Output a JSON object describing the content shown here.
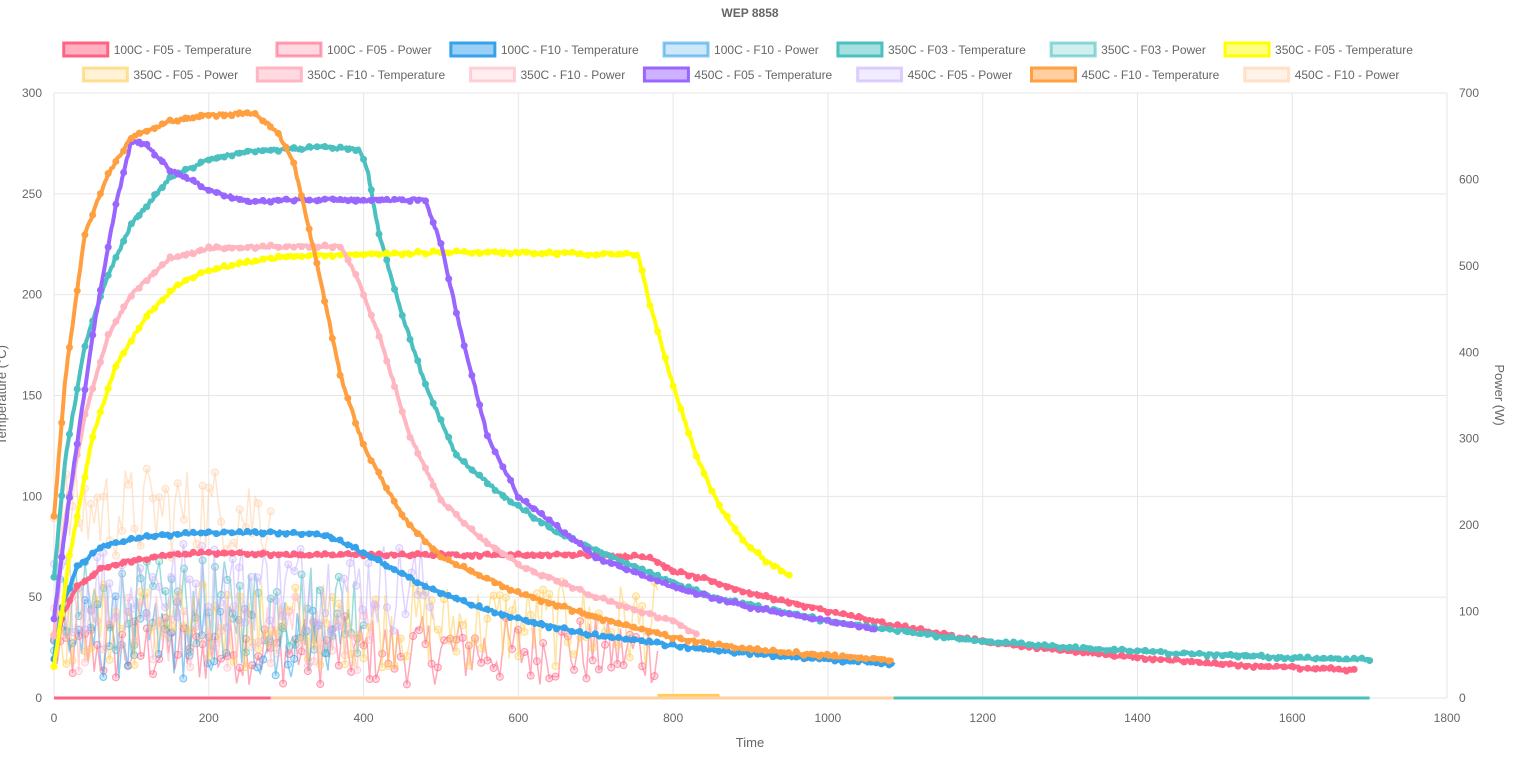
{
  "chart_data": {
    "type": "line",
    "title": "WEP 8858",
    "xlabel": "Time",
    "ylabel": "Temperature (°C)",
    "y2label": "Power (W)",
    "xlim": [
      0,
      1800
    ],
    "ylim": [
      0,
      300
    ],
    "y2lim": [
      0,
      700
    ],
    "x_ticks": [
      0,
      200,
      400,
      600,
      800,
      1000,
      1200,
      1400,
      1600,
      1800
    ],
    "y_ticks": [
      0,
      50,
      100,
      150,
      200,
      250,
      300
    ],
    "y2_ticks": [
      0,
      100,
      200,
      300,
      400,
      500,
      600,
      700
    ],
    "grid": true,
    "legend_position": "top",
    "series": [
      {
        "name": "100C - F05 - Temperature",
        "axis": "left",
        "color": "#ff6384",
        "kind": "temp",
        "points": [
          [
            0,
            20
          ],
          [
            10,
            40
          ],
          [
            30,
            55
          ],
          [
            60,
            64
          ],
          [
            100,
            68
          ],
          [
            150,
            71
          ],
          [
            200,
            72
          ],
          [
            300,
            71
          ],
          [
            400,
            71
          ],
          [
            500,
            71
          ],
          [
            600,
            71
          ],
          [
            700,
            71
          ],
          [
            770,
            70
          ],
          [
            800,
            63
          ],
          [
            850,
            58
          ],
          [
            900,
            52
          ],
          [
            1000,
            43
          ],
          [
            1100,
            35
          ],
          [
            1200,
            28
          ],
          [
            1300,
            24
          ],
          [
            1400,
            20
          ],
          [
            1500,
            17
          ],
          [
            1600,
            15
          ],
          [
            1680,
            14
          ]
        ]
      },
      {
        "name": "100C - F05 - Power",
        "axis": "right",
        "color": "#ff6384",
        "kind": "power",
        "mean": 55,
        "amp": 40,
        "x0": 0,
        "x1": 780,
        "points": [
          [
            0,
            0
          ],
          [
            780,
            0
          ],
          [
            780,
            0
          ],
          [
            1690,
            0
          ]
        ]
      },
      {
        "name": "100C - F10 - Temperature",
        "axis": "left",
        "color": "#36a2eb",
        "kind": "temp",
        "points": [
          [
            0,
            20
          ],
          [
            10,
            45
          ],
          [
            30,
            65
          ],
          [
            60,
            75
          ],
          [
            100,
            79
          ],
          [
            150,
            81
          ],
          [
            200,
            82
          ],
          [
            300,
            82
          ],
          [
            350,
            81
          ],
          [
            380,
            76
          ],
          [
            420,
            68
          ],
          [
            480,
            55
          ],
          [
            550,
            45
          ],
          [
            620,
            37
          ],
          [
            700,
            31
          ],
          [
            800,
            26
          ],
          [
            900,
            22
          ],
          [
            1000,
            19
          ],
          [
            1085,
            17
          ]
        ]
      },
      {
        "name": "100C - F10 - Power",
        "axis": "right",
        "color": "#36a2eb",
        "kind": "power",
        "mean": 70,
        "amp": 50,
        "x0": 0,
        "x1": 370,
        "points": [
          [
            370,
            0
          ],
          [
            1085,
            0
          ]
        ]
      },
      {
        "name": "350C - F03 - Temperature",
        "axis": "left",
        "color": "#4bc0c0",
        "kind": "temp",
        "points": [
          [
            0,
            60
          ],
          [
            15,
            120
          ],
          [
            40,
            175
          ],
          [
            70,
            210
          ],
          [
            100,
            235
          ],
          [
            150,
            258
          ],
          [
            200,
            267
          ],
          [
            250,
            271
          ],
          [
            300,
            272
          ],
          [
            350,
            273
          ],
          [
            395,
            272
          ],
          [
            405,
            262
          ],
          [
            420,
            230
          ],
          [
            450,
            190
          ],
          [
            480,
            155
          ],
          [
            520,
            120
          ],
          [
            580,
            100
          ],
          [
            650,
            82
          ],
          [
            750,
            65
          ],
          [
            850,
            50
          ],
          [
            1000,
            38
          ],
          [
            1200,
            28
          ],
          [
            1400,
            23
          ],
          [
            1600,
            20
          ],
          [
            1700,
            19
          ]
        ]
      },
      {
        "name": "350C - F03 - Power",
        "axis": "right",
        "color": "#4bc0c0",
        "kind": "power",
        "mean": 105,
        "amp": 55,
        "x0": 0,
        "x1": 400,
        "points": [
          [
            400,
            0
          ],
          [
            1700,
            0
          ]
        ]
      },
      {
        "name": "350C - F05 - Temperature",
        "axis": "left",
        "color": "#ffff00",
        "kind": "temp",
        "points": [
          [
            0,
            15
          ],
          [
            20,
            70
          ],
          [
            50,
            130
          ],
          [
            80,
            165
          ],
          [
            120,
            190
          ],
          [
            160,
            205
          ],
          [
            200,
            212
          ],
          [
            250,
            216
          ],
          [
            300,
            219
          ],
          [
            400,
            220
          ],
          [
            500,
            221
          ],
          [
            600,
            221
          ],
          [
            700,
            220
          ],
          [
            755,
            220
          ],
          [
            770,
            195
          ],
          [
            800,
            155
          ],
          [
            830,
            120
          ],
          [
            860,
            95
          ],
          [
            890,
            78
          ],
          [
            920,
            68
          ],
          [
            950,
            61
          ]
        ]
      },
      {
        "name": "350C - F05 - Power",
        "axis": "right",
        "color": "#ffcd56",
        "kind": "power",
        "mean": 85,
        "amp": 50,
        "x0": 0,
        "x1": 780,
        "points": [
          [
            780,
            3
          ],
          [
            860,
            3
          ]
        ]
      },
      {
        "name": "350C - F10 - Temperature",
        "axis": "left",
        "color": "#ffb6c1",
        "kind": "temp",
        "points": [
          [
            0,
            30
          ],
          [
            15,
            90
          ],
          [
            40,
            140
          ],
          [
            70,
            180
          ],
          [
            100,
            200
          ],
          [
            150,
            218
          ],
          [
            200,
            223
          ],
          [
            300,
            224
          ],
          [
            370,
            224
          ],
          [
            390,
            210
          ],
          [
            420,
            180
          ],
          [
            460,
            130
          ],
          [
            500,
            98
          ],
          [
            550,
            80
          ],
          [
            600,
            66
          ],
          [
            700,
            50
          ],
          [
            800,
            38
          ],
          [
            830,
            32
          ]
        ]
      },
      {
        "name": "350C - F10 - Power",
        "axis": "right",
        "color": "#ffb6c1",
        "kind": "power",
        "mean": 75,
        "amp": 45,
        "x0": 0,
        "x1": 420,
        "points": [
          [
            420,
            0
          ],
          [
            830,
            0
          ]
        ]
      },
      {
        "name": "450C - F05 - Temperature",
        "axis": "left",
        "color": "#9966ff",
        "kind": "temp",
        "points": [
          [
            0,
            40
          ],
          [
            20,
            100
          ],
          [
            50,
            180
          ],
          [
            80,
            245
          ],
          [
            100,
            276
          ],
          [
            120,
            274
          ],
          [
            150,
            262
          ],
          [
            200,
            252
          ],
          [
            250,
            246
          ],
          [
            300,
            247
          ],
          [
            400,
            247
          ],
          [
            480,
            247
          ],
          [
            500,
            225
          ],
          [
            530,
            175
          ],
          [
            560,
            130
          ],
          [
            600,
            100
          ],
          [
            650,
            85
          ],
          [
            700,
            70
          ],
          [
            800,
            55
          ],
          [
            900,
            45
          ],
          [
            1000,
            38
          ],
          [
            1060,
            34
          ]
        ]
      },
      {
        "name": "450C - F05 - Power",
        "axis": "right",
        "color": "#c9b3ff",
        "kind": "power",
        "mean": 130,
        "amp": 55,
        "x0": 0,
        "x1": 490,
        "points": [
          [
            490,
            0
          ],
          [
            1060,
            0
          ]
        ]
      },
      {
        "name": "450C - F10 - Temperature",
        "axis": "left",
        "color": "#ff9f40",
        "kind": "temp",
        "points": [
          [
            0,
            90
          ],
          [
            15,
            160
          ],
          [
            40,
            230
          ],
          [
            70,
            260
          ],
          [
            100,
            278
          ],
          [
            150,
            286
          ],
          [
            200,
            289
          ],
          [
            260,
            290
          ],
          [
            290,
            280
          ],
          [
            310,
            265
          ],
          [
            340,
            215
          ],
          [
            370,
            160
          ],
          [
            400,
            125
          ],
          [
            450,
            90
          ],
          [
            500,
            70
          ],
          [
            600,
            52
          ],
          [
            700,
            40
          ],
          [
            800,
            30
          ],
          [
            900,
            24
          ],
          [
            1000,
            21
          ],
          [
            1085,
            19
          ]
        ]
      },
      {
        "name": "450C - F10 - Power",
        "axis": "right",
        "color": "#ffd0a6",
        "kind": "power",
        "mean": 215,
        "amp": 55,
        "x0": 0,
        "x1": 280,
        "points": [
          [
            280,
            0
          ],
          [
            1085,
            0
          ]
        ]
      }
    ]
  }
}
